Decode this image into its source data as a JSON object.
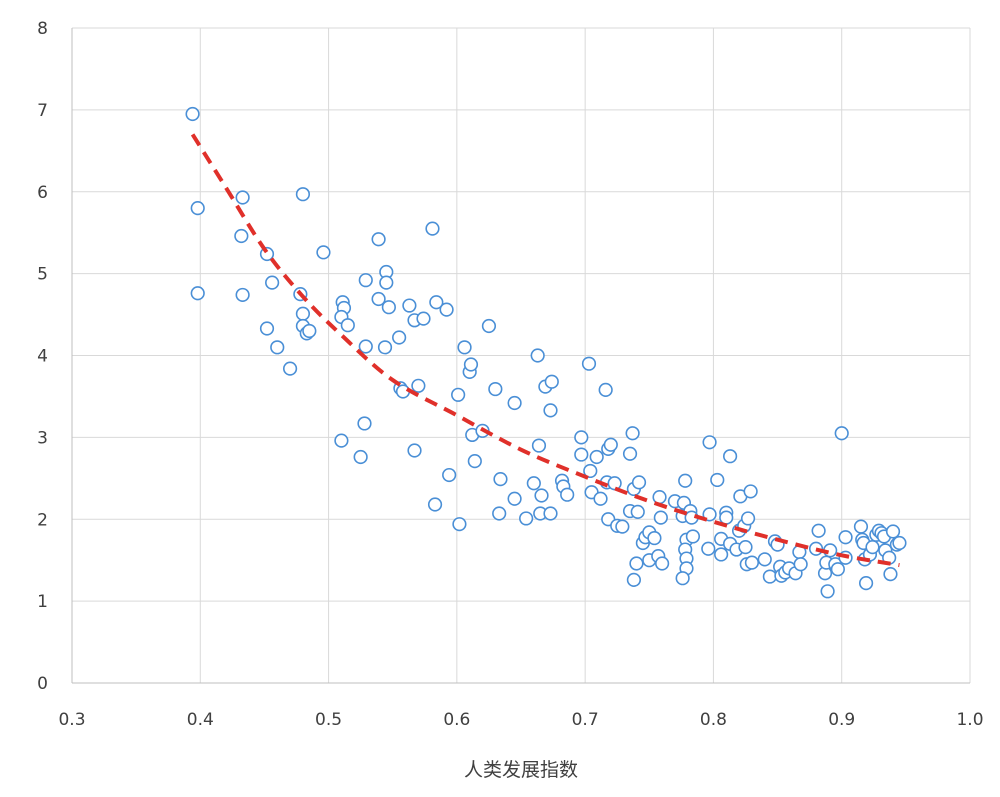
{
  "chart_data": {
    "type": "scatter",
    "title": "",
    "xlabel": "人类发展指数",
    "ylabel": "",
    "xlim": [
      0.3,
      1.0
    ],
    "ylim": [
      0,
      8
    ],
    "x_ticks": [
      "0.3",
      "0.4",
      "0.5",
      "0.6",
      "0.7",
      "0.8",
      "0.9",
      "1.0"
    ],
    "y_ticks": [
      "0",
      "1",
      "2",
      "3",
      "4",
      "5",
      "6",
      "7",
      "8"
    ],
    "grid": true,
    "legend": "none",
    "colors": {
      "marker_edge": "#4a8fd6",
      "marker_fill": "#ffffff",
      "trendline": "#e0302a"
    },
    "series": [
      {
        "marker": "open-circle",
        "points": [
          [
            0.394,
            6.95
          ],
          [
            0.398,
            5.8
          ],
          [
            0.398,
            4.76
          ],
          [
            0.433,
            5.93
          ],
          [
            0.432,
            5.46
          ],
          [
            0.433,
            4.74
          ],
          [
            0.452,
            5.24
          ],
          [
            0.452,
            4.33
          ],
          [
            0.456,
            4.89
          ],
          [
            0.46,
            4.1
          ],
          [
            0.47,
            3.84
          ],
          [
            0.48,
            5.97
          ],
          [
            0.478,
            4.75
          ],
          [
            0.48,
            4.51
          ],
          [
            0.48,
            4.36
          ],
          [
            0.483,
            4.27
          ],
          [
            0.485,
            4.3
          ],
          [
            0.496,
            5.26
          ],
          [
            0.511,
            4.65
          ],
          [
            0.512,
            4.58
          ],
          [
            0.51,
            4.47
          ],
          [
            0.515,
            4.37
          ],
          [
            0.51,
            2.96
          ],
          [
            0.525,
            2.76
          ],
          [
            0.528,
            3.17
          ],
          [
            0.529,
            4.92
          ],
          [
            0.529,
            4.11
          ],
          [
            0.539,
            5.42
          ],
          [
            0.539,
            4.69
          ],
          [
            0.545,
            5.02
          ],
          [
            0.545,
            4.89
          ],
          [
            0.547,
            4.59
          ],
          [
            0.544,
            4.1
          ],
          [
            0.555,
            4.22
          ],
          [
            0.556,
            3.6
          ],
          [
            0.558,
            3.56
          ],
          [
            0.563,
            4.61
          ],
          [
            0.567,
            4.43
          ],
          [
            0.574,
            4.45
          ],
          [
            0.567,
            2.84
          ],
          [
            0.57,
            3.63
          ],
          [
            0.581,
            5.55
          ],
          [
            0.584,
            4.65
          ],
          [
            0.592,
            4.56
          ],
          [
            0.583,
            2.18
          ],
          [
            0.594,
            2.54
          ],
          [
            0.601,
            3.52
          ],
          [
            0.602,
            1.94
          ],
          [
            0.606,
            4.1
          ],
          [
            0.61,
            3.8
          ],
          [
            0.611,
            3.89
          ],
          [
            0.612,
            3.03
          ],
          [
            0.614,
            2.71
          ],
          [
            0.62,
            3.08
          ],
          [
            0.625,
            4.36
          ],
          [
            0.63,
            3.59
          ],
          [
            0.633,
            2.07
          ],
          [
            0.634,
            2.49
          ],
          [
            0.645,
            3.42
          ],
          [
            0.645,
            2.25
          ],
          [
            0.654,
            2.01
          ],
          [
            0.66,
            2.44
          ],
          [
            0.663,
            4.0
          ],
          [
            0.664,
            2.9
          ],
          [
            0.666,
            2.29
          ],
          [
            0.665,
            2.07
          ],
          [
            0.669,
            3.62
          ],
          [
            0.674,
            3.68
          ],
          [
            0.673,
            3.33
          ],
          [
            0.673,
            2.07
          ],
          [
            0.682,
            2.47
          ],
          [
            0.683,
            2.4
          ],
          [
            0.686,
            2.3
          ],
          [
            0.697,
            3.0
          ],
          [
            0.697,
            2.79
          ],
          [
            0.703,
            3.9
          ],
          [
            0.704,
            2.59
          ],
          [
            0.705,
            2.33
          ],
          [
            0.712,
            2.25
          ],
          [
            0.709,
            2.76
          ],
          [
            0.716,
            3.58
          ],
          [
            0.718,
            2.86
          ],
          [
            0.72,
            2.91
          ],
          [
            0.717,
            2.45
          ],
          [
            0.723,
            2.44
          ],
          [
            0.718,
            2.0
          ],
          [
            0.725,
            1.92
          ],
          [
            0.729,
            1.91
          ],
          [
            0.735,
            2.8
          ],
          [
            0.737,
            3.05
          ],
          [
            0.738,
            2.37
          ],
          [
            0.742,
            2.45
          ],
          [
            0.735,
            2.1
          ],
          [
            0.741,
            2.09
          ],
          [
            0.738,
            1.26
          ],
          [
            0.74,
            1.46
          ],
          [
            0.745,
            1.71
          ],
          [
            0.747,
            1.78
          ],
          [
            0.75,
            1.84
          ],
          [
            0.75,
            1.5
          ],
          [
            0.754,
            1.77
          ],
          [
            0.757,
            1.55
          ],
          [
            0.758,
            2.27
          ],
          [
            0.759,
            2.02
          ],
          [
            0.76,
            1.46
          ],
          [
            0.77,
            2.22
          ],
          [
            0.778,
            2.47
          ],
          [
            0.777,
            2.2
          ],
          [
            0.776,
            2.04
          ],
          [
            0.779,
            1.75
          ],
          [
            0.778,
            1.63
          ],
          [
            0.779,
            1.52
          ],
          [
            0.779,
            1.4
          ],
          [
            0.776,
            1.28
          ],
          [
            0.782,
            2.1
          ],
          [
            0.783,
            2.02
          ],
          [
            0.784,
            1.79
          ],
          [
            0.797,
            2.94
          ],
          [
            0.797,
            2.06
          ],
          [
            0.796,
            1.64
          ],
          [
            0.803,
            2.48
          ],
          [
            0.806,
            1.76
          ],
          [
            0.806,
            1.57
          ],
          [
            0.81,
            2.08
          ],
          [
            0.81,
            2.02
          ],
          [
            0.813,
            2.77
          ],
          [
            0.813,
            1.7
          ],
          [
            0.818,
            1.63
          ],
          [
            0.82,
            1.86
          ],
          [
            0.821,
            2.28
          ],
          [
            0.824,
            1.92
          ],
          [
            0.825,
            1.66
          ],
          [
            0.826,
            1.45
          ],
          [
            0.829,
            2.34
          ],
          [
            0.827,
            2.01
          ],
          [
            0.83,
            1.47
          ],
          [
            0.84,
            1.51
          ],
          [
            0.844,
            1.3
          ],
          [
            0.848,
            1.73
          ],
          [
            0.85,
            1.69
          ],
          [
            0.852,
            1.42
          ],
          [
            0.853,
            1.31
          ],
          [
            0.856,
            1.35
          ],
          [
            0.859,
            1.4
          ],
          [
            0.864,
            1.34
          ],
          [
            0.867,
            1.6
          ],
          [
            0.868,
            1.45
          ],
          [
            0.88,
            1.64
          ],
          [
            0.882,
            1.86
          ],
          [
            0.887,
            1.34
          ],
          [
            0.888,
            1.47
          ],
          [
            0.889,
            1.12
          ],
          [
            0.891,
            1.62
          ],
          [
            0.895,
            1.45
          ],
          [
            0.897,
            1.39
          ],
          [
            0.9,
            3.05
          ],
          [
            0.903,
            1.53
          ],
          [
            0.903,
            1.78
          ],
          [
            0.915,
            1.91
          ],
          [
            0.916,
            1.75
          ],
          [
            0.917,
            1.71
          ],
          [
            0.918,
            1.51
          ],
          [
            0.919,
            1.22
          ],
          [
            0.922,
            1.57
          ],
          [
            0.924,
            1.66
          ],
          [
            0.927,
            1.81
          ],
          [
            0.929,
            1.86
          ],
          [
            0.931,
            1.83
          ],
          [
            0.933,
            1.79
          ],
          [
            0.934,
            1.62
          ],
          [
            0.937,
            1.53
          ],
          [
            0.938,
            1.33
          ],
          [
            0.94,
            1.85
          ],
          [
            0.943,
            1.69
          ],
          [
            0.945,
            1.71
          ]
        ]
      }
    ],
    "trendline": {
      "style": "dashed",
      "points": [
        [
          0.394,
          6.7
        ],
        [
          0.42,
          6.05
        ],
        [
          0.45,
          5.3
        ],
        [
          0.48,
          4.72
        ],
        [
          0.51,
          4.25
        ],
        [
          0.55,
          3.7
        ],
        [
          0.6,
          3.27
        ],
        [
          0.65,
          2.85
        ],
        [
          0.7,
          2.52
        ],
        [
          0.75,
          2.22
        ],
        [
          0.8,
          1.97
        ],
        [
          0.85,
          1.75
        ],
        [
          0.9,
          1.56
        ],
        [
          0.945,
          1.44
        ]
      ]
    }
  }
}
